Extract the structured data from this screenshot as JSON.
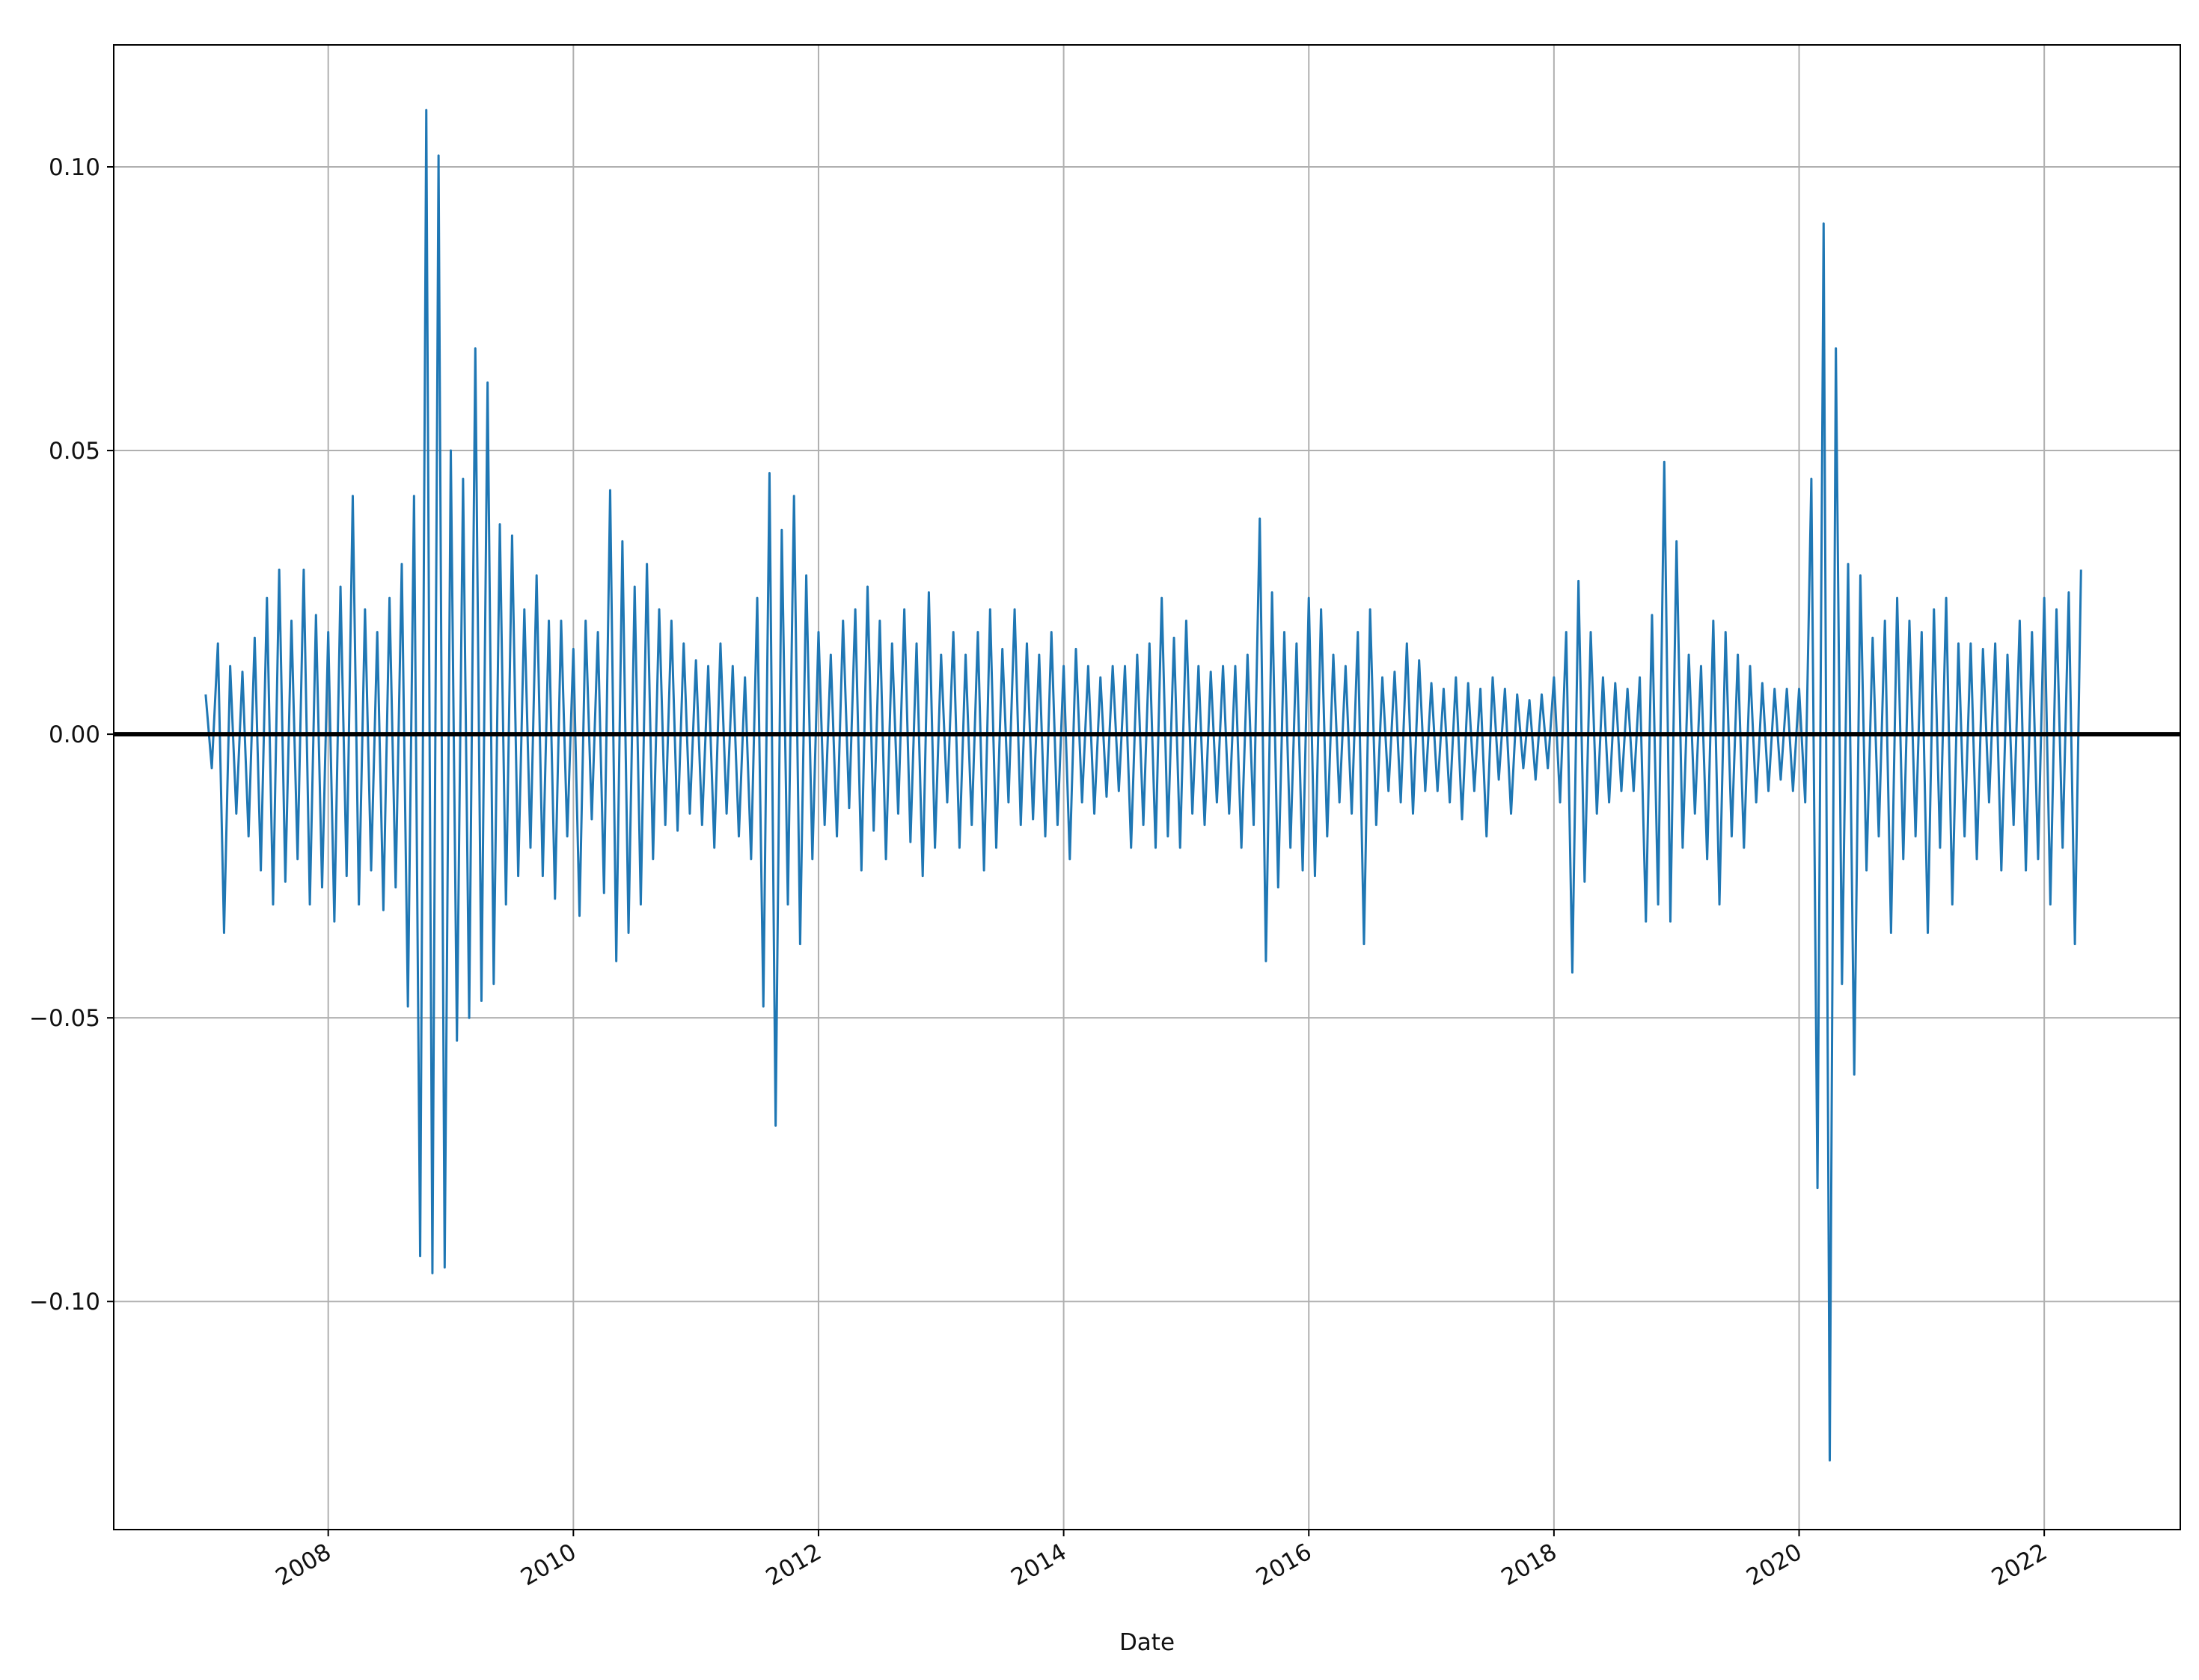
{
  "chart_data": {
    "type": "line",
    "x_label": "Date",
    "color": "#1f77b4",
    "grid": true,
    "zero_line": {
      "y": 0,
      "color": "#000000"
    },
    "xlim": [
      2006.25,
      2023.11
    ],
    "xticks": [
      2008,
      2010,
      2012,
      2014,
      2016,
      2018,
      2020,
      2022
    ],
    "ylim": [
      -0.1402,
      0.1215
    ],
    "yticks": [
      {
        "value": -0.1,
        "label": "−0.10"
      },
      {
        "value": -0.05,
        "label": "−0.05"
      },
      {
        "value": 0,
        "label": "0.00"
      },
      {
        "value": 0.05,
        "label": "0.05"
      },
      {
        "value": 0.1,
        "label": "0.10"
      }
    ],
    "x": [
      2007,
      2007.05,
      2007.1,
      2007.15,
      2007.2,
      2007.25,
      2007.3,
      2007.35,
      2007.4,
      2007.45,
      2007.5,
      2007.55,
      2007.6,
      2007.65,
      2007.7,
      2007.75,
      2007.8,
      2007.85,
      2007.9,
      2007.95,
      2008,
      2008.05,
      2008.1,
      2008.15,
      2008.2,
      2008.25,
      2008.3,
      2008.35,
      2008.4,
      2008.45,
      2008.5,
      2008.55,
      2008.6,
      2008.65,
      2008.7,
      2008.75,
      2008.8,
      2008.85,
      2008.9,
      2008.95,
      2009,
      2009.05,
      2009.1,
      2009.15,
      2009.2,
      2009.25,
      2009.3,
      2009.35,
      2009.4,
      2009.45,
      2009.5,
      2009.55,
      2009.6,
      2009.65,
      2009.7,
      2009.75,
      2009.8,
      2009.85,
      2009.9,
      2009.95,
      2010,
      2010.05,
      2010.1,
      2010.15,
      2010.2,
      2010.25,
      2010.3,
      2010.35,
      2010.4,
      2010.45,
      2010.5,
      2010.55,
      2010.6,
      2010.65,
      2010.7,
      2010.75,
      2010.8,
      2010.85,
      2010.9,
      2010.95,
      2011,
      2011.05,
      2011.1,
      2011.15,
      2011.2,
      2011.25,
      2011.3,
      2011.35,
      2011.4,
      2011.45,
      2011.5,
      2011.55,
      2011.6,
      2011.65,
      2011.7,
      2011.75,
      2011.8,
      2011.85,
      2011.9,
      2011.95,
      2012,
      2012.05,
      2012.1,
      2012.15,
      2012.2,
      2012.25,
      2012.3,
      2012.35,
      2012.4,
      2012.45,
      2012.5,
      2012.55,
      2012.6,
      2012.65,
      2012.7,
      2012.75,
      2012.8,
      2012.85,
      2012.9,
      2012.95,
      2013,
      2013.05,
      2013.1,
      2013.15,
      2013.2,
      2013.25,
      2013.3,
      2013.35,
      2013.4,
      2013.45,
      2013.5,
      2013.55,
      2013.6,
      2013.65,
      2013.7,
      2013.75,
      2013.8,
      2013.85,
      2013.9,
      2013.95,
      2014,
      2014.05,
      2014.1,
      2014.15,
      2014.2,
      2014.25,
      2014.3,
      2014.35,
      2014.4,
      2014.45,
      2014.5,
      2014.55,
      2014.6,
      2014.65,
      2014.7,
      2014.75,
      2014.8,
      2014.85,
      2014.9,
      2014.95,
      2015,
      2015.05,
      2015.1,
      2015.15,
      2015.2,
      2015.25,
      2015.3,
      2015.35,
      2015.4,
      2015.45,
      2015.5,
      2015.55,
      2015.6,
      2015.65,
      2015.7,
      2015.75,
      2015.8,
      2015.85,
      2015.9,
      2015.95,
      2016,
      2016.05,
      2016.1,
      2016.15,
      2016.2,
      2016.25,
      2016.3,
      2016.35,
      2016.4,
      2016.45,
      2016.5,
      2016.55,
      2016.6,
      2016.65,
      2016.7,
      2016.75,
      2016.8,
      2016.85,
      2016.9,
      2016.95,
      2017,
      2017.05,
      2017.1,
      2017.15,
      2017.2,
      2017.25,
      2017.3,
      2017.35,
      2017.4,
      2017.45,
      2017.5,
      2017.55,
      2017.6,
      2017.65,
      2017.7,
      2017.75,
      2017.8,
      2017.85,
      2017.9,
      2017.95,
      2018,
      2018.05,
      2018.1,
      2018.15,
      2018.2,
      2018.25,
      2018.3,
      2018.35,
      2018.4,
      2018.45,
      2018.5,
      2018.55,
      2018.6,
      2018.65,
      2018.7,
      2018.75,
      2018.8,
      2018.85,
      2018.9,
      2018.95,
      2019,
      2019.05,
      2019.1,
      2019.15,
      2019.2,
      2019.25,
      2019.3,
      2019.35,
      2019.4,
      2019.45,
      2019.5,
      2019.55,
      2019.6,
      2019.65,
      2019.7,
      2019.75,
      2019.8,
      2019.85,
      2019.9,
      2019.95,
      2020,
      2020.05,
      2020.1,
      2020.15,
      2020.2,
      2020.25,
      2020.3,
      2020.35,
      2020.4,
      2020.45,
      2020.5,
      2020.55,
      2020.6,
      2020.65,
      2020.7,
      2020.75,
      2020.8,
      2020.85,
      2020.9,
      2020.95,
      2021,
      2021.05,
      2021.1,
      2021.15,
      2021.2,
      2021.25,
      2021.3,
      2021.35,
      2021.4,
      2021.45,
      2021.5,
      2021.55,
      2021.6,
      2021.65,
      2021.7,
      2021.75,
      2021.8,
      2021.85,
      2021.9,
      2021.95,
      2022,
      2022.05,
      2022.1,
      2022.15,
      2022.2,
      2022.25,
      2022.3
    ],
    "values": [
      0.007,
      -0.006,
      0.016,
      -0.035,
      0.012,
      -0.014,
      0.011,
      -0.018,
      0.017,
      -0.024,
      0.024,
      -0.03,
      0.029,
      -0.026,
      0.02,
      -0.022,
      0.029,
      -0.03,
      0.021,
      -0.027,
      0.018,
      -0.033,
      0.026,
      -0.025,
      0.042,
      -0.03,
      0.022,
      -0.024,
      0.018,
      -0.031,
      0.024,
      -0.027,
      0.03,
      -0.048,
      0.042,
      -0.092,
      0.11,
      -0.095,
      0.102,
      -0.094,
      0.05,
      -0.054,
      0.045,
      -0.05,
      0.068,
      -0.047,
      0.062,
      -0.044,
      0.037,
      -0.03,
      0.035,
      -0.025,
      0.022,
      -0.02,
      0.028,
      -0.025,
      0.02,
      -0.029,
      0.02,
      -0.018,
      0.015,
      -0.032,
      0.02,
      -0.015,
      0.018,
      -0.028,
      0.043,
      -0.04,
      0.034,
      -0.035,
      0.026,
      -0.03,
      0.03,
      -0.022,
      0.022,
      -0.016,
      0.02,
      -0.017,
      0.016,
      -0.014,
      0.013,
      -0.016,
      0.012,
      -0.02,
      0.016,
      -0.014,
      0.012,
      -0.018,
      0.01,
      -0.022,
      0.024,
      -0.048,
      0.046,
      -0.069,
      0.036,
      -0.03,
      0.042,
      -0.037,
      0.028,
      -0.022,
      0.018,
      -0.016,
      0.014,
      -0.018,
      0.02,
      -0.013,
      0.022,
      -0.024,
      0.026,
      -0.017,
      0.02,
      -0.022,
      0.016,
      -0.014,
      0.022,
      -0.019,
      0.016,
      -0.025,
      0.025,
      -0.02,
      0.014,
      -0.012,
      0.018,
      -0.02,
      0.014,
      -0.016,
      0.018,
      -0.024,
      0.022,
      -0.02,
      0.015,
      -0.012,
      0.022,
      -0.016,
      0.016,
      -0.015,
      0.014,
      -0.018,
      0.018,
      -0.016,
      0.012,
      -0.022,
      0.015,
      -0.012,
      0.012,
      -0.014,
      0.01,
      -0.011,
      0.012,
      -0.01,
      0.012,
      -0.02,
      0.014,
      -0.016,
      0.016,
      -0.02,
      0.024,
      -0.018,
      0.017,
      -0.02,
      0.02,
      -0.014,
      0.012,
      -0.016,
      0.011,
      -0.012,
      0.012,
      -0.014,
      0.012,
      -0.02,
      0.014,
      -0.016,
      0.038,
      -0.04,
      0.025,
      -0.027,
      0.018,
      -0.02,
      0.016,
      -0.024,
      0.024,
      -0.025,
      0.022,
      -0.018,
      0.014,
      -0.012,
      0.012,
      -0.014,
      0.018,
      -0.037,
      0.022,
      -0.016,
      0.01,
      -0.01,
      0.011,
      -0.012,
      0.016,
      -0.014,
      0.013,
      -0.01,
      0.009,
      -0.01,
      0.008,
      -0.012,
      0.01,
      -0.015,
      0.009,
      -0.01,
      0.008,
      -0.018,
      0.01,
      -0.008,
      0.008,
      -0.014,
      0.007,
      -0.006,
      0.006,
      -0.008,
      0.007,
      -0.006,
      0.01,
      -0.012,
      0.018,
      -0.042,
      0.027,
      -0.026,
      0.018,
      -0.014,
      0.01,
      -0.012,
      0.009,
      -0.01,
      0.008,
      -0.01,
      0.01,
      -0.033,
      0.021,
      -0.03,
      0.048,
      -0.033,
      0.034,
      -0.02,
      0.014,
      -0.014,
      0.012,
      -0.022,
      0.02,
      -0.03,
      0.018,
      -0.018,
      0.014,
      -0.02,
      0.012,
      -0.012,
      0.009,
      -0.01,
      0.008,
      -0.008,
      0.008,
      -0.01,
      0.008,
      -0.012,
      0.045,
      -0.08,
      0.09,
      -0.128,
      0.068,
      -0.044,
      0.03,
      -0.06,
      0.028,
      -0.024,
      0.017,
      -0.018,
      0.02,
      -0.035,
      0.024,
      -0.022,
      0.02,
      -0.018,
      0.018,
      -0.035,
      0.022,
      -0.02,
      0.024,
      -0.03,
      0.016,
      -0.018,
      0.016,
      -0.022,
      0.015,
      -0.012,
      0.016,
      -0.024,
      0.014,
      -0.016,
      0.02,
      -0.024,
      0.018,
      -0.022,
      0.024,
      -0.03,
      0.022,
      -0.02,
      0.025,
      -0.037,
      0.029
    ]
  }
}
